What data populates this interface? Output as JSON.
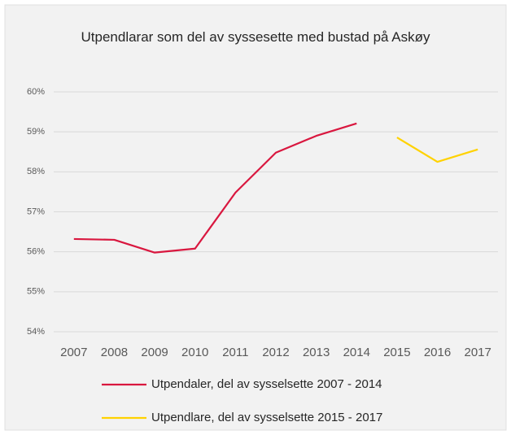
{
  "chart_data": {
    "type": "line",
    "title": "Utpendlarar som del av syssesette med bustad på Askøy",
    "categories": [
      "2007",
      "2008",
      "2009",
      "2010",
      "2011",
      "2012",
      "2013",
      "2014",
      "2015",
      "2016",
      "2017"
    ],
    "series": [
      {
        "name": "Utpendaler, del av sysselsette 2007 - 2014",
        "color": "#d9173f",
        "values": [
          56.32,
          56.3,
          55.98,
          56.08,
          57.48,
          58.48,
          58.9,
          59.21,
          null,
          null,
          null
        ]
      },
      {
        "name": "Utpendlare, del av sysselsette 2015 - 2017",
        "color": "#ffd200",
        "values": [
          null,
          null,
          null,
          null,
          null,
          null,
          null,
          null,
          58.86,
          58.25,
          58.56
        ]
      }
    ],
    "ylim": [
      54,
      60
    ],
    "yticks": [
      {
        "value": 54,
        "label": "54%"
      },
      {
        "value": 55,
        "label": "55%"
      },
      {
        "value": 56,
        "label": "56%"
      },
      {
        "value": 57,
        "label": "57%"
      },
      {
        "value": 58,
        "label": "58%"
      },
      {
        "value": 59,
        "label": "59%"
      },
      {
        "value": 60,
        "label": "60%"
      }
    ],
    "grid": true,
    "legend": "bottom"
  }
}
